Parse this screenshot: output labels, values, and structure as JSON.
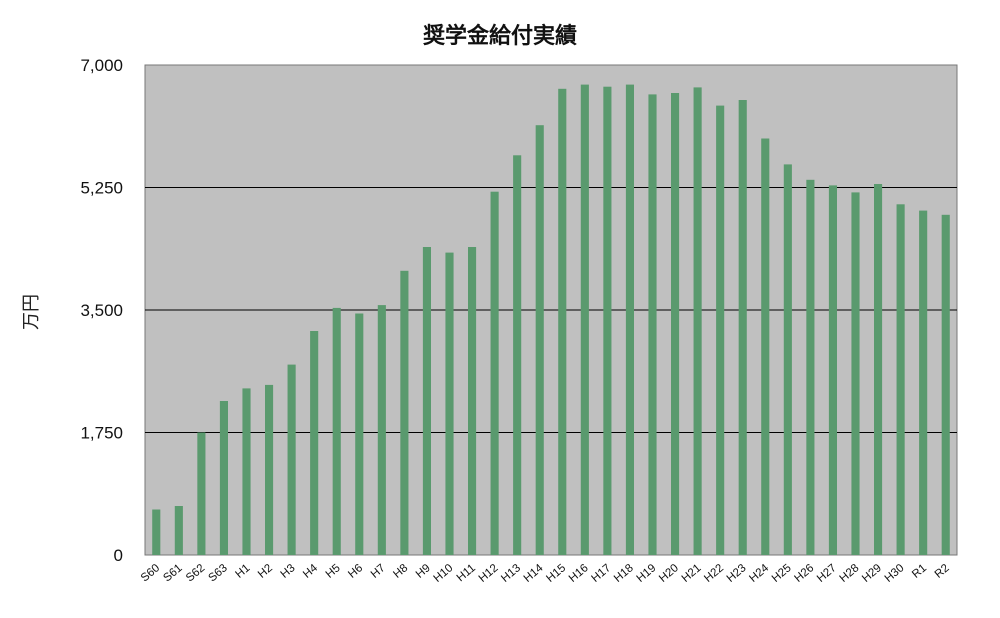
{
  "chart_data": {
    "type": "bar",
    "title": "奨学金給付実績",
    "xlabel": "",
    "ylabel": "万円",
    "ylim": [
      0,
      7000
    ],
    "yticks": [
      "0",
      "1,750",
      "3,500",
      "5,250",
      "7,000"
    ],
    "grid": true,
    "legend": "none",
    "colors": {
      "bar": "#5a9a6e",
      "plot_bg": "#c0c0c0",
      "grid": "#000000"
    },
    "categories": [
      "S60",
      "S61",
      "S62",
      "S63",
      "H1",
      "H2",
      "H3",
      "H4",
      "H5",
      "H6",
      "H7",
      "H8",
      "H9",
      "H10",
      "H11",
      "H12",
      "H13",
      "H14",
      "H15",
      "H16",
      "H17",
      "H18",
      "H19",
      "H20",
      "H21",
      "H22",
      "H23",
      "H24",
      "H25",
      "H26",
      "H27",
      "H28",
      "H29",
      "H30",
      "R1",
      "R2"
    ],
    "values": [
      650,
      700,
      1750,
      2200,
      2380,
      2430,
      2720,
      3200,
      3530,
      3450,
      3570,
      4060,
      4400,
      4320,
      4400,
      5190,
      5710,
      6140,
      6660,
      6720,
      6690,
      6720,
      6580,
      6600,
      6680,
      6420,
      6500,
      5950,
      5580,
      5360,
      5280,
      5180,
      5300,
      5010,
      4920,
      4860
    ]
  }
}
